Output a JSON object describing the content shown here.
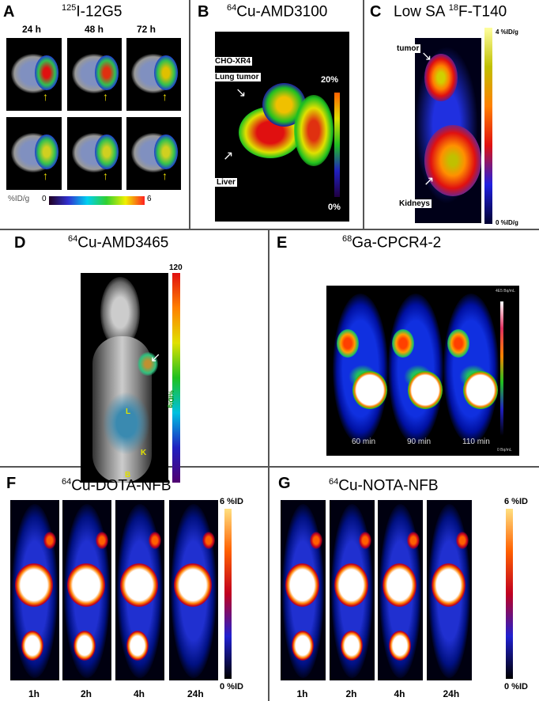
{
  "panels": {
    "A": {
      "letter": "A",
      "isotope": "125",
      "title": "I-12G5",
      "times": [
        "24 h",
        "48 h",
        "72 h"
      ],
      "scale_unit": "%ID/g",
      "scale_min": "0",
      "scale_max": "6"
    },
    "B": {
      "letter": "B",
      "isotope": "64",
      "title": "Cu-AMD3100",
      "label_tumor_1": "CHO-XR4",
      "label_tumor_2": "Lung tumor",
      "label_liver": "Liver",
      "scale_max": "20%",
      "scale_min": "0%"
    },
    "C": {
      "letter": "C",
      "prefix": "Low SA ",
      "isotope": "18",
      "title": "F-T140",
      "label_tumor": "tumor",
      "label_kidneys": "Kidneys",
      "scale_max": "4 %ID/g",
      "scale_min": "0 %ID/g"
    },
    "D": {
      "letter": "D",
      "isotope": "64",
      "title": "Cu-AMD3465",
      "scale_max": "120",
      "scale_unit": "%ID/g",
      "organs": [
        "L",
        "K",
        "B"
      ]
    },
    "E": {
      "letter": "E",
      "isotope": "68",
      "title": "Ga-CPCR4-2",
      "times": [
        "60 min",
        "90 min",
        "110 min"
      ],
      "scale_max": "4E5 Bq/mL",
      "scale_min": "0 Bq/mL"
    },
    "F": {
      "letter": "F",
      "isotope": "64",
      "title": "Cu-DOTA-NFB",
      "times": [
        "1h",
        "2h",
        "4h",
        "24h"
      ],
      "scale_max": "6 %ID",
      "scale_min": "0 %ID"
    },
    "G": {
      "letter": "G",
      "isotope": "64",
      "title": "Cu-NOTA-NFB",
      "times": [
        "1h",
        "2h",
        "4h",
        "24h"
      ],
      "scale_max": "6 %ID",
      "scale_min": "0 %ID"
    }
  },
  "colors": {
    "rainbow": [
      "#2a0040",
      "#2020c0",
      "#00c0e0",
      "#20c020",
      "#e0e000",
      "#ff8000",
      "#e01010"
    ],
    "hot": [
      "#000000",
      "#1010c0",
      "#8000a0",
      "#ff0000",
      "#ff8000",
      "#ffffc0"
    ]
  }
}
